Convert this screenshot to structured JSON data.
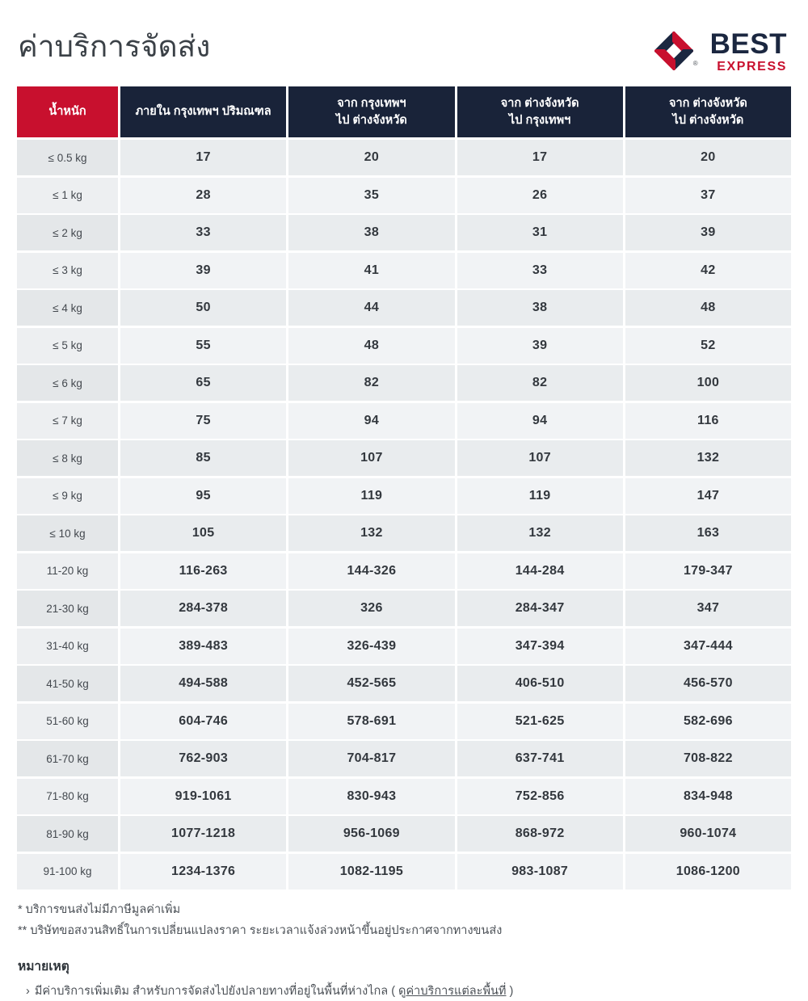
{
  "page": {
    "title": "ค่าบริการจัดส่ง"
  },
  "logo": {
    "brand": "BEST",
    "sub": "EXPRESS",
    "registered": "®"
  },
  "colors": {
    "red": "#c8102e",
    "navy": "#192339",
    "navy_logo": "#1b2740"
  },
  "table": {
    "headers": [
      {
        "lines": [
          "น้ำหนัก"
        ]
      },
      {
        "lines": [
          "ภายใน กรุงเทพฯ ปริมณฑล"
        ]
      },
      {
        "lines": [
          "จาก กรุงเทพฯ",
          "ไป ต่างจังหวัด"
        ]
      },
      {
        "lines": [
          "จาก ต่างจังหวัด",
          "ไป กรุงเทพฯ"
        ]
      },
      {
        "lines": [
          "จาก ต่างจังหวัด",
          "ไป ต่างจังหวัด"
        ]
      }
    ],
    "rows": [
      {
        "weight": "≤ 0.5 kg",
        "values": [
          "17",
          "20",
          "17",
          "20"
        ]
      },
      {
        "weight": "≤ 1 kg",
        "values": [
          "28",
          "35",
          "26",
          "37"
        ]
      },
      {
        "weight": "≤ 2 kg",
        "values": [
          "33",
          "38",
          "31",
          "39"
        ]
      },
      {
        "weight": "≤ 3 kg",
        "values": [
          "39",
          "41",
          "33",
          "42"
        ]
      },
      {
        "weight": "≤ 4 kg",
        "values": [
          "50",
          "44",
          "38",
          "48"
        ]
      },
      {
        "weight": "≤ 5 kg",
        "values": [
          "55",
          "48",
          "39",
          "52"
        ]
      },
      {
        "weight": "≤ 6 kg",
        "values": [
          "65",
          "82",
          "82",
          "100"
        ]
      },
      {
        "weight": "≤ 7 kg",
        "values": [
          "75",
          "94",
          "94",
          "116"
        ]
      },
      {
        "weight": "≤ 8 kg",
        "values": [
          "85",
          "107",
          "107",
          "132"
        ]
      },
      {
        "weight": "≤ 9 kg",
        "values": [
          "95",
          "119",
          "119",
          "147"
        ]
      },
      {
        "weight": "≤ 10 kg",
        "values": [
          "105",
          "132",
          "132",
          "163"
        ]
      },
      {
        "weight": "11-20 kg",
        "values": [
          "116-263",
          "144-326",
          "144-284",
          "179-347"
        ]
      },
      {
        "weight": "21-30 kg",
        "values": [
          "284-378",
          "326",
          "284-347",
          "347"
        ]
      },
      {
        "weight": "31-40 kg",
        "values": [
          "389-483",
          "326-439",
          "347-394",
          "347-444"
        ]
      },
      {
        "weight": "41-50 kg",
        "values": [
          "494-588",
          "452-565",
          "406-510",
          "456-570"
        ]
      },
      {
        "weight": "51-60 kg",
        "values": [
          "604-746",
          "578-691",
          "521-625",
          "582-696"
        ]
      },
      {
        "weight": "61-70 kg",
        "values": [
          "762-903",
          "704-817",
          "637-741",
          "708-822"
        ]
      },
      {
        "weight": "71-80 kg",
        "values": [
          "919-1061",
          "830-943",
          "752-856",
          "834-948"
        ]
      },
      {
        "weight": "81-90 kg",
        "values": [
          "1077-1218",
          "956-1069",
          "868-972",
          "960-1074"
        ]
      },
      {
        "weight": "91-100 kg",
        "values": [
          "1234-1376",
          "1082-1195",
          "983-1087",
          "1086-1200"
        ]
      }
    ],
    "row_shades": {
      "odd_label": "#e4e7e9",
      "odd_value": "#e9ecee",
      "even_label": "#edeff1",
      "even_value": "#f1f3f5"
    }
  },
  "footnotes": [
    "* บริการขนส่งไม่มีภาษีมูลค่าเพิ่ม",
    "** บริษัทขอสงวนสิทธิ์ในการเปลี่ยนแปลงราคา ระยะเวลาแจ้งล่วงหน้าขึ้นอยู่ประกาศจากทางขนส่ง"
  ],
  "notes": {
    "heading": "หมายเหตุ",
    "bullet": "›",
    "text_prefix": "มีค่าบริการเพิ่มเติม สำหรับการจัดส่งไปยังปลายทางที่อยู่ในพื้นที่ห่างไกล ( ดู",
    "link": "ค่าบริการแต่ละพื้นที่",
    "text_suffix": " )"
  }
}
